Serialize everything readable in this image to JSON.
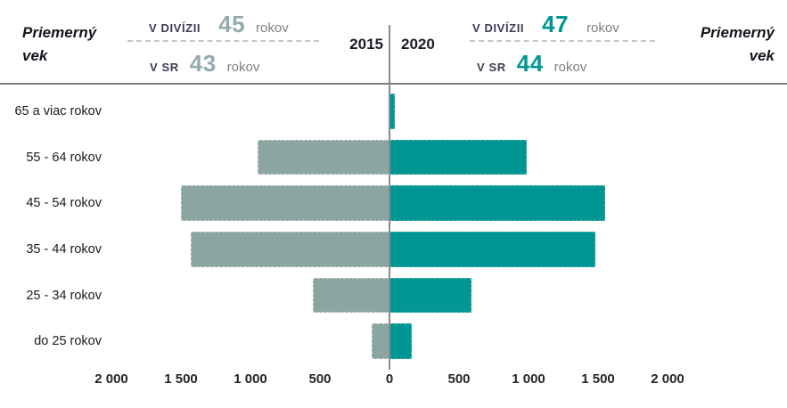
{
  "header": {
    "title_line1": "Priemerný",
    "title_line2": "vek",
    "year_left": "2015",
    "year_right": "2020",
    "left": {
      "row1_label": "V DIVÍZII",
      "row1_value": "45",
      "row1_unit": "rokov",
      "row2_label": "V SR",
      "row2_value": "43",
      "row2_unit": "rokov"
    },
    "right": {
      "row1_label": "V DIVÍZII",
      "row1_value": "47",
      "row1_unit": "rokov",
      "row2_label": "V SR",
      "row2_value": "44",
      "row2_unit": "rokov"
    }
  },
  "chart_data": {
    "type": "bar",
    "subtype": "population-pyramid",
    "title": "",
    "xlabel": "",
    "ylabel": "",
    "categories": [
      "65 a viac rokov",
      "55 - 64 rokov",
      "45 - 54 rokov",
      "35 - 44 rokov",
      "25 - 34 rokov",
      "do 25 rokov"
    ],
    "series": [
      {
        "name": "2015",
        "side": "left",
        "color": "#8aa5a2",
        "values": [
          0,
          950,
          1500,
          1430,
          550,
          130
        ]
      },
      {
        "name": "2020",
        "side": "right",
        "color": "#009694",
        "values": [
          40,
          990,
          1550,
          1480,
          590,
          160
        ]
      }
    ],
    "xlim": [
      -2000,
      2000
    ],
    "x_ticks": {
      "values": [
        -2000,
        -1500,
        -1000,
        -500,
        0,
        500,
        1000,
        1500,
        2000
      ],
      "labels": [
        "2 000",
        "1 500",
        "1 000",
        "500",
        "0",
        "500",
        "1 000",
        "1 500",
        "2 000"
      ]
    },
    "grid": false,
    "legend_position": "top-center-years"
  },
  "colors": {
    "bar_2015": "#8aa5a2",
    "bar_2020": "#009694",
    "value_2015": "#93abae",
    "value_2020": "#009694",
    "stat_label": "#403a54",
    "unit_gray": "#7f7f7f",
    "axis_line": "#8a8a8a",
    "top_line": "#7c7c7c",
    "text_dark": "#1b1b1b"
  }
}
